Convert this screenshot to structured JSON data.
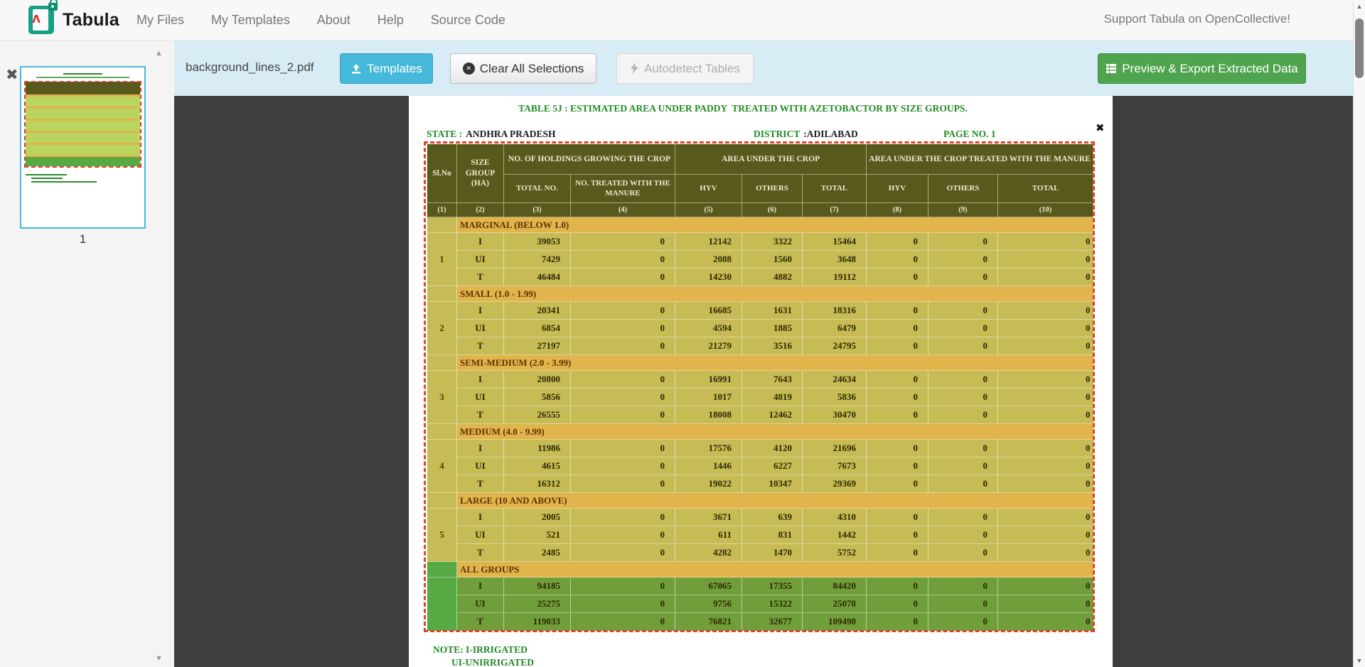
{
  "navbar": {
    "brand": "Tabula",
    "menu": [
      "My Files",
      "My Templates",
      "About",
      "Help",
      "Source Code"
    ],
    "support_link": "Support Tabula on OpenCollective!"
  },
  "toolbar": {
    "filename": "background_lines_2.pdf",
    "templates_label": "Templates",
    "clear_label": "Clear All Selections",
    "autodetect_label": "Autodetect Tables",
    "export_label": "Preview & Export Extracted Data"
  },
  "sidebar": {
    "page_number": "1"
  },
  "icons": {
    "remove_glyph": "✖",
    "close_glyph": "✖",
    "up_glyph": "▲",
    "down_glyph": "▼"
  },
  "colors": {
    "templates_blue": "#46b8da",
    "export_green": "#4fa54f",
    "toolbar_blue": "#d8ecf5",
    "selection_red": "#e0432c",
    "table_header_olive": "#575a1c",
    "row_olive": "#c6bb55",
    "band_orange": "#e1b44c",
    "all_groups_green": "#6f9e3a",
    "doc_green": "#1f8b24"
  },
  "document": {
    "title": "TABLE 5J : ESTIMATED AREA UNDER PADDY  TREATED WITH AZETOBACTOR BY SIZE GROUPS.",
    "state_label": "STATE :",
    "state_value": "ANDHRA PRADESH",
    "district_label": "DISTRICT",
    "district_value": ":ADILABAD",
    "page_label": "PAGE NO. 1",
    "note_line1": "NOTE: I-IRRIGATED",
    "note_line2": "UI-UNIRRIGATED",
    "table": {
      "corner_headers": [
        "Sl.No",
        "SIZE GROUP (HA)"
      ],
      "group_headers": [
        {
          "label": "NO. OF HOLDINGS GROWING THE CROP",
          "span": 2
        },
        {
          "label": "AREA UNDER THE CROP",
          "span": 3
        },
        {
          "label": "AREA UNDER THE CROP TREATED WITH THE  MANURE",
          "span": 3
        }
      ],
      "sub_headers": [
        "TOTAL NO.",
        "NO. TREATED WITH THE  MANURE",
        "HYV",
        "OTHERS",
        "TOTAL",
        "HYV",
        "OTHERS",
        "TOTAL"
      ],
      "col_numbers": [
        "(1)",
        "(2)",
        "(3)",
        "(4)",
        "(5)",
        "(6)",
        "(7)",
        "(8)",
        "(9)",
        "(10)"
      ],
      "sections": [
        {
          "sl": "1",
          "label": "MARGINAL (BELOW 1.0)",
          "all_groups": false,
          "rows": [
            [
              "I",
              "39053",
              "0",
              "12142",
              "3322",
              "15464",
              "0",
              "0",
              "0"
            ],
            [
              "UI",
              "7429",
              "0",
              "2088",
              "1560",
              "3648",
              "0",
              "0",
              "0"
            ],
            [
              "T",
              "46484",
              "0",
              "14230",
              "4882",
              "19112",
              "0",
              "0",
              "0"
            ]
          ]
        },
        {
          "sl": "2",
          "label": "SMALL (1.0 - 1.99)",
          "all_groups": false,
          "rows": [
            [
              "I",
              "20341",
              "0",
              "16685",
              "1631",
              "18316",
              "0",
              "0",
              "0"
            ],
            [
              "UI",
              "6854",
              "0",
              "4594",
              "1885",
              "6479",
              "0",
              "0",
              "0"
            ],
            [
              "T",
              "27197",
              "0",
              "21279",
              "3516",
              "24795",
              "0",
              "0",
              "0"
            ]
          ]
        },
        {
          "sl": "3",
          "label": "SEMI-MEDIUM (2.0 - 3.99)",
          "all_groups": false,
          "rows": [
            [
              "I",
              "20800",
              "0",
              "16991",
              "7643",
              "24634",
              "0",
              "0",
              "0"
            ],
            [
              "UI",
              "5856",
              "0",
              "1017",
              "4819",
              "5836",
              "0",
              "0",
              "0"
            ],
            [
              "T",
              "26555",
              "0",
              "18008",
              "12462",
              "30470",
              "0",
              "0",
              "0"
            ]
          ]
        },
        {
          "sl": "4",
          "label": "MEDIUM (4.0 - 9.99)",
          "all_groups": false,
          "rows": [
            [
              "I",
              "11986",
              "0",
              "17576",
              "4120",
              "21696",
              "0",
              "0",
              "0"
            ],
            [
              "UI",
              "4615",
              "0",
              "1446",
              "6227",
              "7673",
              "0",
              "0",
              "0"
            ],
            [
              "T",
              "16312",
              "0",
              "19022",
              "10347",
              "29369",
              "0",
              "0",
              "0"
            ]
          ]
        },
        {
          "sl": "5",
          "label": "LARGE (10 AND ABOVE)",
          "all_groups": false,
          "rows": [
            [
              "I",
              "2005",
              "0",
              "3671",
              "639",
              "4310",
              "0",
              "0",
              "0"
            ],
            [
              "UI",
              "521",
              "0",
              "611",
              "831",
              "1442",
              "0",
              "0",
              "0"
            ],
            [
              "T",
              "2485",
              "0",
              "4282",
              "1470",
              "5752",
              "0",
              "0",
              "0"
            ]
          ]
        },
        {
          "sl": "",
          "label": "ALL GROUPS",
          "all_groups": true,
          "rows": [
            [
              "I",
              "94185",
              "0",
              "67065",
              "17355",
              "84420",
              "0",
              "0",
              "0"
            ],
            [
              "UI",
              "25275",
              "0",
              "9756",
              "15322",
              "25078",
              "0",
              "0",
              "0"
            ],
            [
              "T",
              "119033",
              "0",
              "76821",
              "32677",
              "109498",
              "0",
              "0",
              "0"
            ]
          ]
        }
      ]
    }
  }
}
